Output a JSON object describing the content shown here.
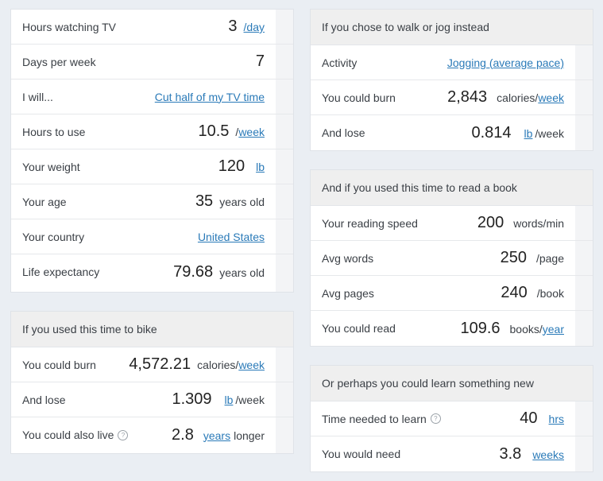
{
  "tv": {
    "hours_label": "Hours watching TV",
    "hours_value": "3",
    "hours_unit": "/day",
    "days_label": "Days per week",
    "days_value": "7",
    "will_label": "I will...",
    "will_value": "Cut half of my TV time",
    "use_label": "Hours to use",
    "use_value": "10.5",
    "use_unit_prefix": "/",
    "use_unit_link": "week",
    "weight_label": "Your weight",
    "weight_value": "120",
    "weight_unit": "lb",
    "age_label": "Your age",
    "age_value": "35",
    "age_unit": "years old",
    "country_label": "Your country",
    "country_value": "United States",
    "life_label": "Life expectancy",
    "life_value": "79.68",
    "life_unit": "years old"
  },
  "bike": {
    "header": "If you used this time to bike",
    "burn_label": "You could burn",
    "burn_value": "4,572.21",
    "burn_unit_prefix": "calories/",
    "burn_unit_link": "week",
    "lose_label": "And lose",
    "lose_value": "1.309",
    "lose_unit_link": "lb",
    "lose_unit_suffix": "/week",
    "live_label": "You could also live",
    "live_value": "2.8",
    "live_unit_link": "years",
    "live_unit_suffix": "longer"
  },
  "walk": {
    "header": "If you chose to walk or jog instead",
    "activity_label": "Activity",
    "activity_value": "Jogging (average pace)",
    "burn_label": "You could burn",
    "burn_value": "2,843",
    "burn_unit_prefix": "calories/",
    "burn_unit_link": "week",
    "lose_label": "And lose",
    "lose_value": "0.814",
    "lose_unit_link": "lb",
    "lose_unit_suffix": "/week"
  },
  "book": {
    "header": "And if you used this time to read a book",
    "speed_label": "Your reading speed",
    "speed_value": "200",
    "speed_unit": "words/min",
    "words_label": "Avg words",
    "words_value": "250",
    "words_unit": "/page",
    "pages_label": "Avg pages",
    "pages_value": "240",
    "pages_unit": "/book",
    "read_label": "You could read",
    "read_value": "109.6",
    "read_unit_prefix": "books/",
    "read_unit_link": "year"
  },
  "learn": {
    "header": "Or perhaps you could learn something new",
    "time_label": "Time needed to learn",
    "time_value": "40",
    "time_unit_link": "hrs",
    "need_label": "You would need",
    "need_value": "3.8",
    "need_unit_link": "weeks"
  },
  "icons": {
    "info": "info-icon"
  },
  "colors": {
    "link": "#2a7ab8",
    "header_bg": "#efefef",
    "page_bg": "#eaeef3"
  }
}
